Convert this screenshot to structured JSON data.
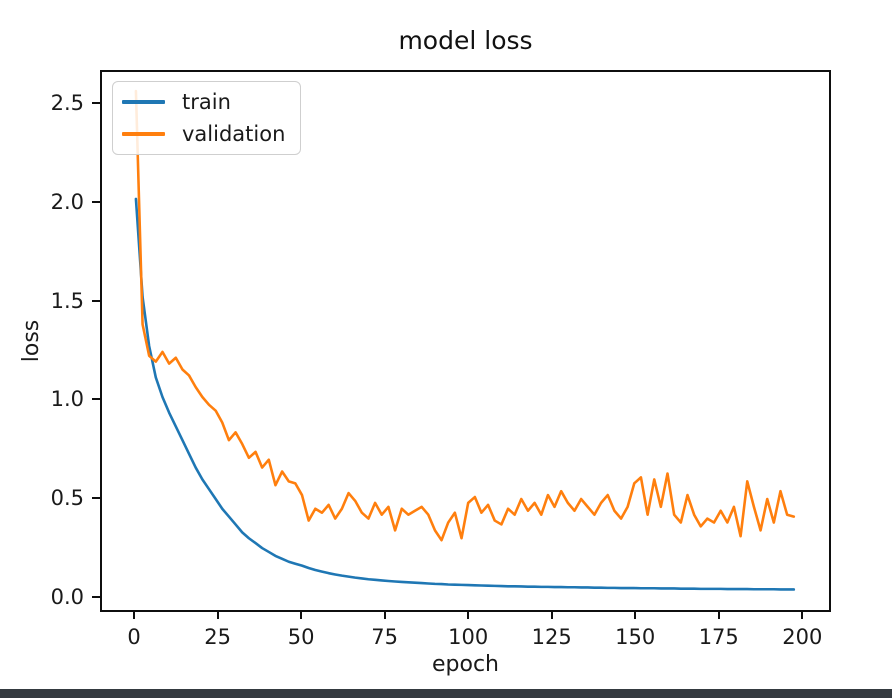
{
  "window": {
    "background_color": "#ffffff",
    "bottom_bar_color": "#343a40"
  },
  "chart_data": {
    "type": "line",
    "title": "model loss",
    "xlabel": "epoch",
    "ylabel": "loss",
    "grid": false,
    "legend": {
      "position": "upper left",
      "entries": [
        "train",
        "validation"
      ]
    },
    "xlim": [
      -10.2,
      208.6
    ],
    "ylim": [
      -0.076,
      2.667
    ],
    "x_ticks": [
      0,
      25,
      50,
      75,
      100,
      125,
      150,
      175,
      200
    ],
    "x_tick_labels": [
      "0",
      "25",
      "50",
      "75",
      "100",
      "125",
      "150",
      "175",
      "200"
    ],
    "y_ticks": [
      0.0,
      0.5,
      1.0,
      1.5,
      2.0,
      2.5
    ],
    "y_tick_labels": [
      "0.0",
      "0.5",
      "1.0",
      "1.5",
      "2.0",
      "2.5"
    ],
    "x_start": 0,
    "x_step": 2,
    "series": [
      {
        "name": "train",
        "color": "#1f77b4",
        "values": [
          2.02,
          1.52,
          1.27,
          1.11,
          1.01,
          0.93,
          0.86,
          0.79,
          0.72,
          0.65,
          0.59,
          0.54,
          0.49,
          0.44,
          0.4,
          0.36,
          0.32,
          0.29,
          0.265,
          0.24,
          0.22,
          0.2,
          0.185,
          0.17,
          0.16,
          0.15,
          0.138,
          0.128,
          0.12,
          0.112,
          0.105,
          0.099,
          0.094,
          0.089,
          0.085,
          0.081,
          0.078,
          0.075,
          0.072,
          0.069,
          0.067,
          0.065,
          0.063,
          0.061,
          0.059,
          0.057,
          0.056,
          0.054,
          0.053,
          0.052,
          0.051,
          0.05,
          0.049,
          0.048,
          0.047,
          0.046,
          0.045,
          0.045,
          0.044,
          0.043,
          0.043,
          0.042,
          0.042,
          0.041,
          0.041,
          0.04,
          0.04,
          0.039,
          0.039,
          0.038,
          0.038,
          0.037,
          0.037,
          0.036,
          0.036,
          0.036,
          0.035,
          0.035,
          0.035,
          0.034,
          0.034,
          0.034,
          0.033,
          0.033,
          0.033,
          0.032,
          0.032,
          0.032,
          0.032,
          0.031,
          0.031,
          0.031,
          0.031,
          0.03,
          0.03,
          0.03,
          0.03,
          0.029,
          0.029,
          0.029
        ]
      },
      {
        "name": "validation",
        "color": "#ff7f0e",
        "values": [
          2.57,
          1.38,
          1.22,
          1.19,
          1.24,
          1.18,
          1.21,
          1.15,
          1.12,
          1.06,
          1.01,
          0.97,
          0.94,
          0.88,
          0.79,
          0.83,
          0.77,
          0.7,
          0.73,
          0.65,
          0.69,
          0.56,
          0.63,
          0.58,
          0.57,
          0.51,
          0.38,
          0.44,
          0.42,
          0.46,
          0.39,
          0.44,
          0.52,
          0.48,
          0.42,
          0.39,
          0.47,
          0.41,
          0.45,
          0.33,
          0.44,
          0.41,
          0.43,
          0.45,
          0.41,
          0.33,
          0.28,
          0.37,
          0.42,
          0.29,
          0.47,
          0.5,
          0.42,
          0.46,
          0.38,
          0.36,
          0.44,
          0.41,
          0.49,
          0.43,
          0.47,
          0.41,
          0.51,
          0.45,
          0.53,
          0.47,
          0.43,
          0.49,
          0.45,
          0.41,
          0.47,
          0.51,
          0.43,
          0.39,
          0.45,
          0.57,
          0.6,
          0.41,
          0.59,
          0.45,
          0.62,
          0.41,
          0.37,
          0.51,
          0.41,
          0.35,
          0.39,
          0.37,
          0.43,
          0.37,
          0.45,
          0.3,
          0.58,
          0.45,
          0.33,
          0.49,
          0.37,
          0.53,
          0.41,
          0.4
        ]
      }
    ]
  }
}
